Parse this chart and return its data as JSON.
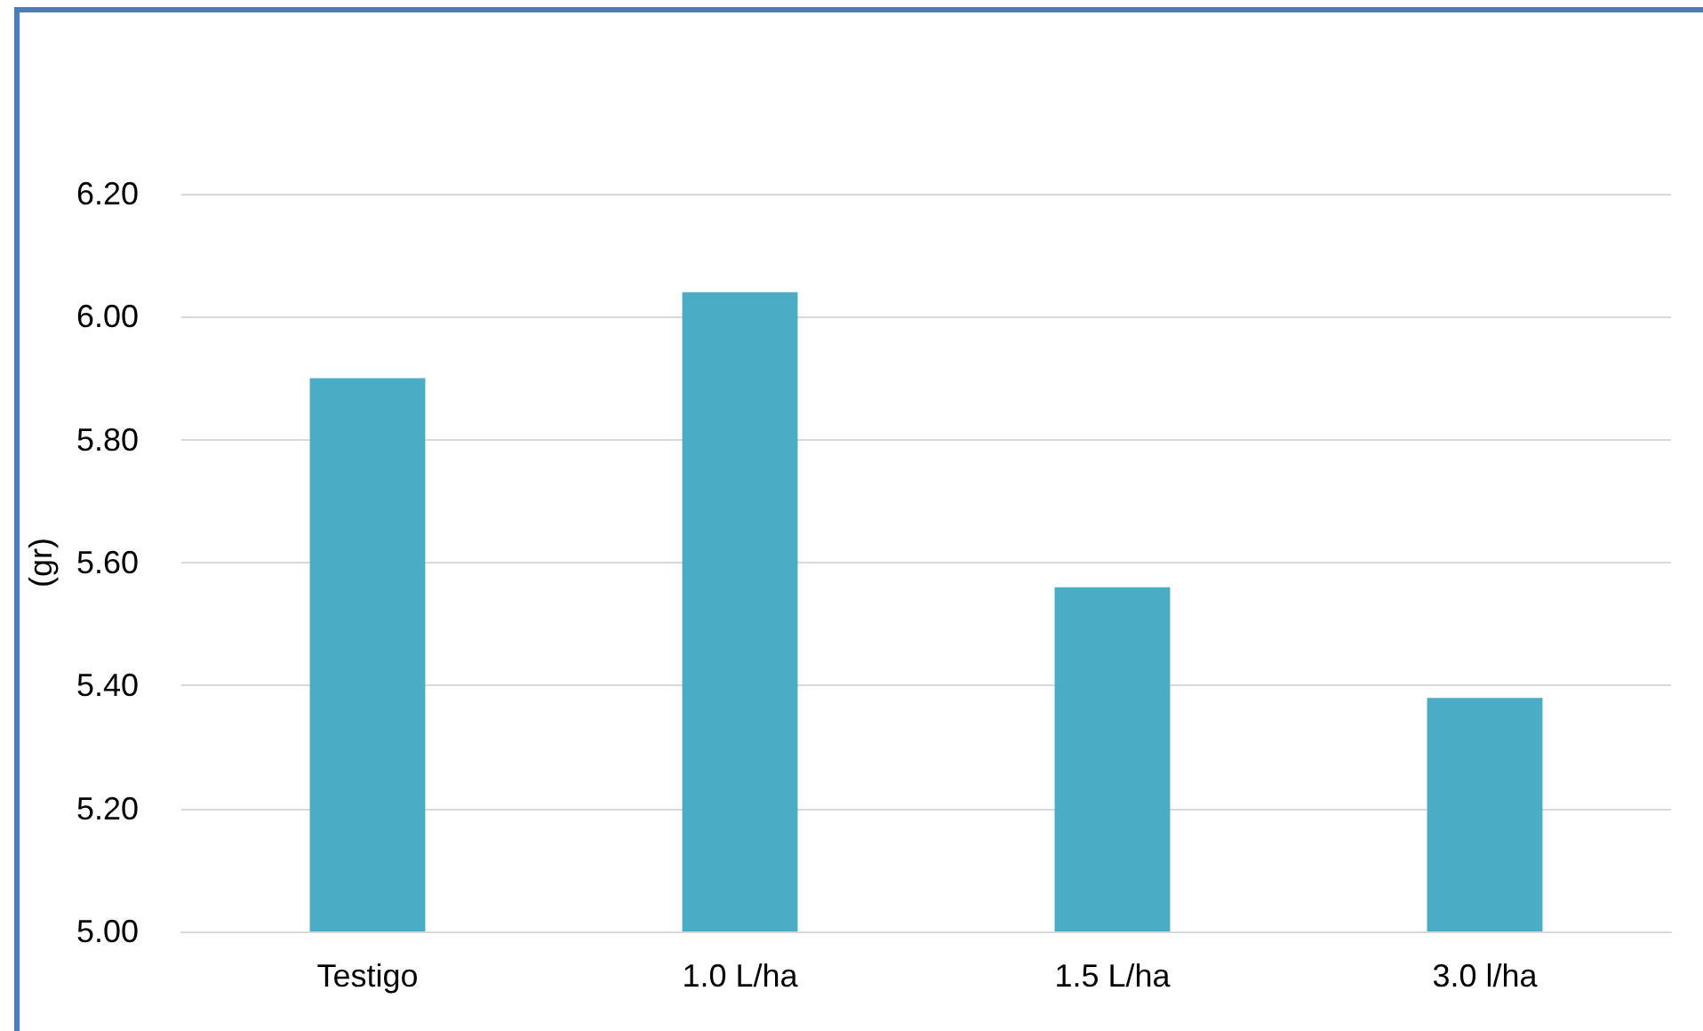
{
  "chart_data": {
    "type": "bar",
    "ylabel": "(gr)",
    "categories": [
      "Testigo",
      "1.0 L/ha",
      "1.5 L/ha",
      "3.0 l/ha"
    ],
    "values": [
      5.9,
      6.04,
      5.56,
      5.38
    ],
    "color": "#4bacc6",
    "ylim": [
      5.0,
      6.2
    ],
    "yticks": [
      {
        "value": 5.0,
        "label": "5.00"
      },
      {
        "value": 5.2,
        "label": "5.20"
      },
      {
        "value": 5.4,
        "label": "5.40"
      },
      {
        "value": 5.6,
        "label": "5.60"
      },
      {
        "value": 5.8,
        "label": "5.80"
      },
      {
        "value": 6.0,
        "label": "6.00"
      },
      {
        "value": 6.2,
        "label": "6.20"
      }
    ],
    "grid": "y"
  }
}
